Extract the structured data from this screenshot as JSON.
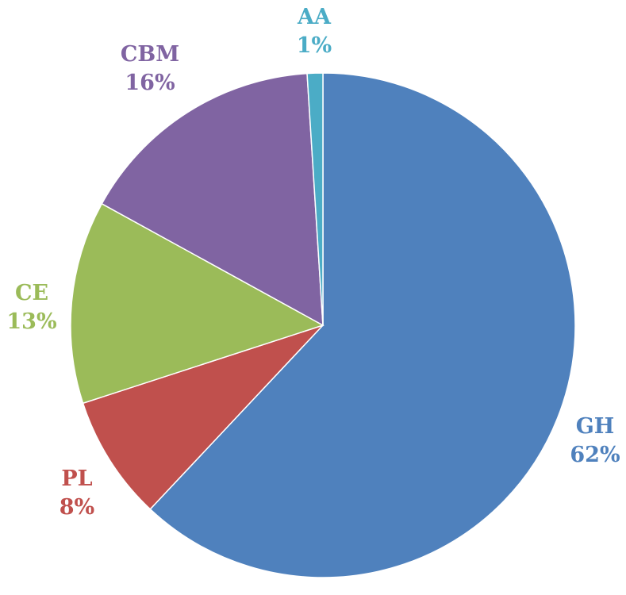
{
  "chart_data": {
    "type": "pie",
    "title": "",
    "start": "12 o'clock",
    "direction": "clockwise",
    "legend": "none",
    "slices": [
      {
        "name": "GH",
        "value": 62,
        "label": "62%",
        "color": "#4F81BD"
      },
      {
        "name": "PL",
        "value": 8,
        "label": "8%",
        "color": "#C0504D"
      },
      {
        "name": "CE",
        "value": 13,
        "label": "13%",
        "color": "#9BBB59"
      },
      {
        "name": "CBM",
        "value": 16,
        "label": "16%",
        "color": "#8064A2"
      },
      {
        "name": "AA",
        "value": 1,
        "label": "1%",
        "color": "#4BACC6"
      }
    ]
  }
}
